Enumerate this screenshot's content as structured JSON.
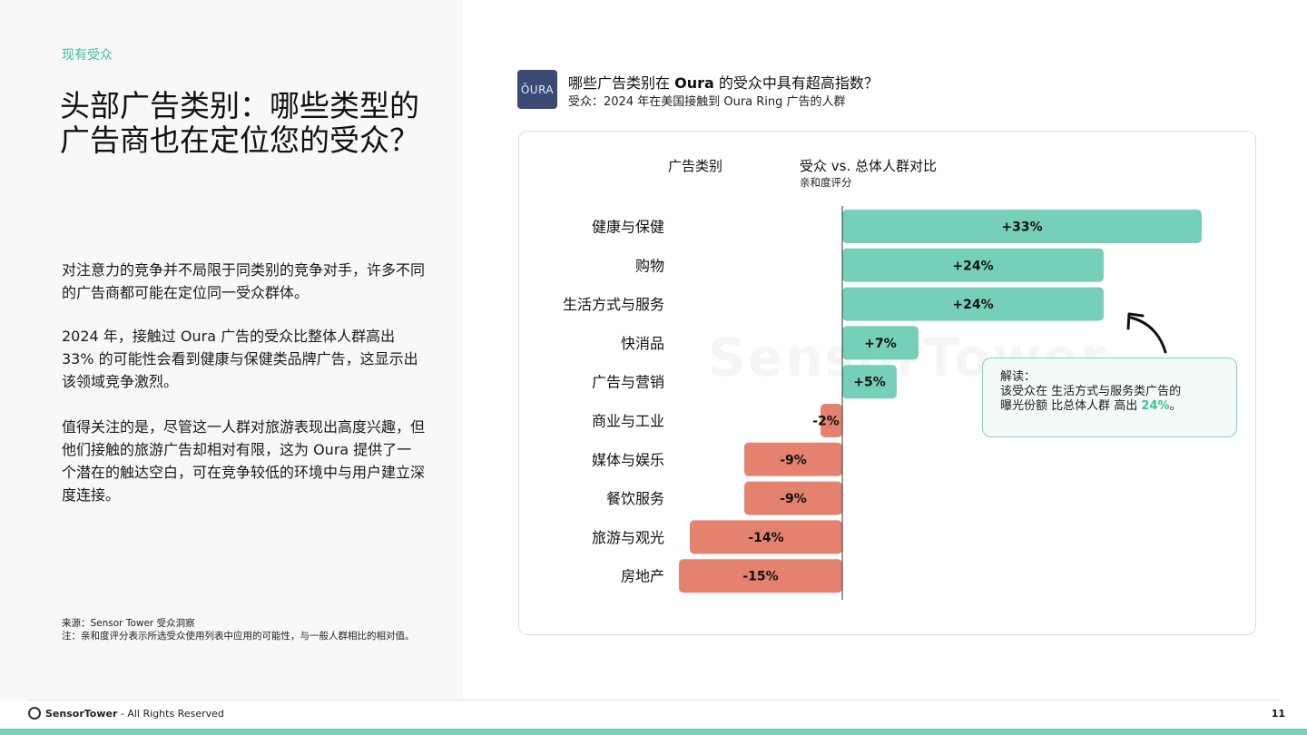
{
  "left": {
    "eyebrow": "现有受众",
    "headline": "头部广告类别：哪些类型的广告商也在定位您的受众？",
    "paragraphs": [
      "对注意力的竞争并不局限于同类别的竞争对手，许多不同的广告商都可能在定位同一受众群体。",
      "2024 年，接触过 Oura 广告的受众比整体人群高出 33% 的可能性会看到健康与保健类品牌广告，这显示出该领域竞争激烈。",
      "值得关注的是，尽管这一人群对旅游表现出高度兴趣，但他们接触的旅游广告却相对有限，这为 Oura 提供了一个潜在的触达空白，可在竞争较低的环境中与用户建立深度连接。"
    ],
    "source": "来源：Sensor Tower 受众洞察",
    "note": "注：亲和度评分表示所选受众使用列表中应用的可能性，与一般人群相比的相对值。"
  },
  "chart_header": {
    "logo_text": "ŌURA",
    "question_prefix": "哪些广告类别在 ",
    "question_brand": "Oura",
    "question_suffix": " 的受众中具有超高指数？",
    "subtitle": "受众：2024 年在美国接触到 Oura Ring 广告的人群"
  },
  "chart_data": {
    "type": "bar",
    "orientation": "horizontal",
    "category_header": "广告类别",
    "value_header": "受众 vs. 总体人群对比",
    "value_subheader": "亲和度评分",
    "categories": [
      "健康与保健",
      "购物",
      "生活方式与服务",
      "快消品",
      "广告与营销",
      "商业与工业",
      "媒体与娱乐",
      "餐饮服务",
      "旅游与观光",
      "房地产"
    ],
    "values": [
      33,
      24,
      24,
      7,
      5,
      -2,
      -9,
      -9,
      -14,
      -15
    ],
    "labels": [
      "+33%",
      "+24%",
      "+24%",
      "+7%",
      "+5%",
      "-2%",
      "-9%",
      "-9%",
      "-14%",
      "-15%"
    ],
    "colors": {
      "positive": "#76cfb8",
      "negative": "#e5826f"
    },
    "xlim": [
      -15,
      33
    ],
    "grid": false,
    "legend": "none"
  },
  "callout": {
    "title": "解读：",
    "line1": "该受众在 生活方式与服务类广告的",
    "line2_prefix": "曝光份额 比总体人群 高出 ",
    "line2_highlight": "24%",
    "line2_suffix": "。"
  },
  "watermark": "SensorTower",
  "footer": {
    "brand": "SensorTower",
    "rights": " - All Rights Reserved",
    "page": "11"
  }
}
